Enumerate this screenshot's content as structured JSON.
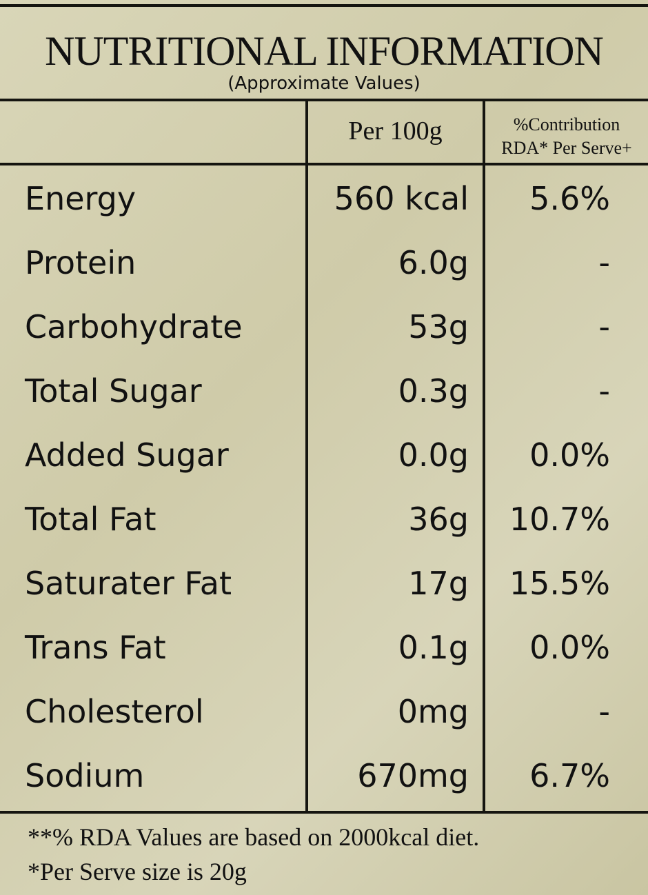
{
  "header": {
    "title": "NUTRITIONAL INFORMATION",
    "subtitle": "(Approximate Values)"
  },
  "table": {
    "columns": [
      "Per 100g",
      [
        "%Contribution",
        "RDA* Per Serve+"
      ]
    ],
    "rows": [
      [
        "Energy",
        "560 kcal",
        "5.6%"
      ],
      [
        "Protein",
        "6.0g",
        "-"
      ],
      [
        "Carbohydrate",
        "53g",
        "-"
      ],
      [
        "Total Sugar",
        "0.3g",
        "-"
      ],
      [
        "Added Sugar",
        "0.0g",
        "0.0%"
      ],
      [
        "Total Fat",
        "36g",
        "10.7%"
      ],
      [
        "Saturater Fat",
        "17g",
        "15.5%"
      ],
      [
        "Trans Fat",
        "0.1g",
        "0.0%"
      ],
      [
        "Cholesterol",
        "0mg",
        "-"
      ],
      [
        "Sodium",
        "670mg",
        "6.7%"
      ]
    ]
  },
  "footnotes": [
    "**% RDA Values are based on 2000kcal diet.",
    "*Per Serve size is 20g"
  ]
}
